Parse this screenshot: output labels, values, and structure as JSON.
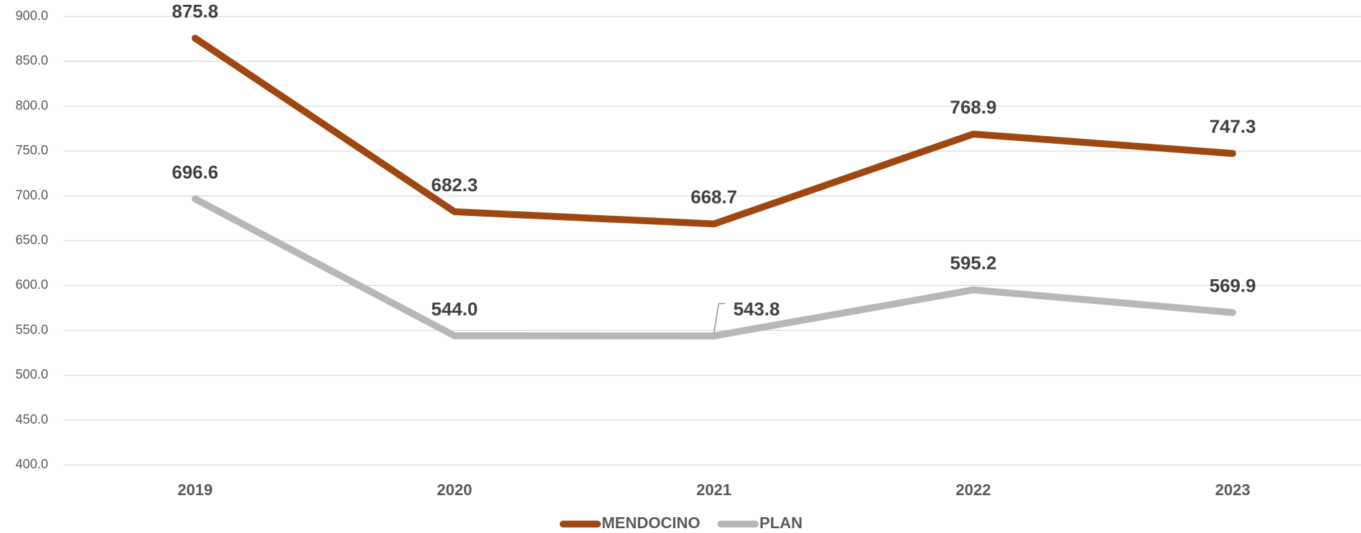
{
  "chart_data": {
    "type": "line",
    "categories": [
      "2019",
      "2020",
      "2021",
      "2022",
      "2023"
    ],
    "series": [
      {
        "name": "MENDOCINO",
        "color": "#9e4710",
        "values": [
          875.8,
          682.3,
          668.7,
          768.9,
          747.3
        ],
        "value_labels": [
          "875.8",
          "682.3",
          "668.7",
          "768.9",
          "747.3"
        ]
      },
      {
        "name": "PLAN",
        "color": "#b7b7b7",
        "values": [
          696.6,
          544.0,
          543.8,
          595.2,
          569.9
        ],
        "value_labels": [
          "696.6",
          "544.0",
          "543.8",
          "595.2",
          "569.9"
        ]
      }
    ],
    "ylim": [
      400,
      900
    ],
    "yticks": [
      {
        "value": 400,
        "label": "400.0"
      },
      {
        "value": 450,
        "label": "450.0"
      },
      {
        "value": 500,
        "label": "500.0"
      },
      {
        "value": 550,
        "label": "550.0"
      },
      {
        "value": 600,
        "label": "600.0"
      },
      {
        "value": 650,
        "label": "650.0"
      },
      {
        "value": 700,
        "label": "700.0"
      },
      {
        "value": 750,
        "label": "750.0"
      },
      {
        "value": 800,
        "label": "800.0"
      },
      {
        "value": 850,
        "label": "850.0"
      },
      {
        "value": 900,
        "label": "900.0"
      }
    ],
    "grid": true,
    "legend": "bottom"
  }
}
